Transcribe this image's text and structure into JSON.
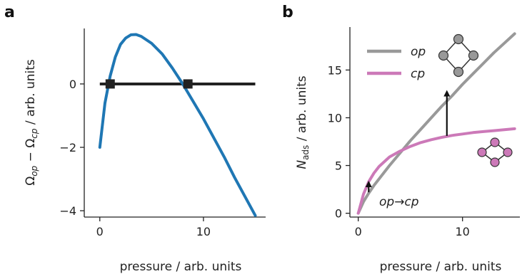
{
  "chart_data": [
    {
      "panel_label": "a",
      "type": "line",
      "xlabel": "pressure / arb. units",
      "ylabel": "Ω_op − Ω_cp / arb. units",
      "ylabel_parts": {
        "base1": "Ω",
        "sub1": "op",
        "minus": " − ",
        "base2": "Ω",
        "sub2": "cp",
        "rest": " / arb. units"
      },
      "xlim": [
        -1.5,
        16
      ],
      "ylim": [
        -4.2,
        1.75
      ],
      "xticks": [
        0,
        10
      ],
      "yticks": [
        0,
        -2,
        -4
      ],
      "ytick_labels": [
        "0",
        "−2",
        "−4"
      ],
      "series": [
        {
          "color": "#1f77b4",
          "x": [
            0,
            0.5,
            1,
            1.5,
            2,
            2.5,
            3,
            3.5,
            4,
            5,
            6,
            7,
            8,
            9,
            10,
            11,
            12,
            13,
            14,
            15
          ],
          "y": [
            -2.0,
            -0.6,
            0.25,
            0.85,
            1.25,
            1.45,
            1.55,
            1.56,
            1.5,
            1.28,
            0.95,
            0.5,
            0.0,
            -0.55,
            -1.1,
            -1.7,
            -2.3,
            -2.95,
            -3.55,
            -4.15
          ]
        }
      ],
      "hline": {
        "y": 0,
        "x": [
          0,
          15
        ],
        "color": "#222222"
      },
      "markers": {
        "x": [
          1,
          8.5
        ],
        "y": [
          0,
          0
        ],
        "color": "#222222",
        "shape": "square"
      }
    },
    {
      "panel_label": "b",
      "type": "line",
      "xlabel": "pressure / arb. units",
      "ylabel_parts": {
        "base": "N",
        "sub": "ads",
        "rest": " / arb. units"
      },
      "xlim": [
        -0.8,
        15.5
      ],
      "ylim": [
        -0.4,
        19.5
      ],
      "xticks": [
        0,
        10
      ],
      "yticks": [
        0,
        5,
        10,
        15
      ],
      "legend": {
        "position": "top-left",
        "entries": [
          "op",
          "cp"
        ]
      },
      "series": [
        {
          "name": "op",
          "color": "#999999",
          "x": [
            0,
            0.5,
            1,
            1.5,
            2,
            3,
            4,
            5,
            6,
            7,
            8,
            9,
            10,
            11,
            12,
            13,
            14,
            15
          ],
          "y": [
            0,
            1.2,
            2.1,
            2.9,
            3.6,
            5.0,
            6.3,
            7.6,
            8.8,
            10.0,
            11.2,
            12.3,
            13.5,
            14.6,
            15.7,
            16.8,
            17.8,
            18.8
          ]
        },
        {
          "name": "cp",
          "color": "#cc79b8",
          "x": [
            0,
            0.5,
            1,
            1.5,
            2,
            3,
            4,
            5,
            6,
            7,
            8,
            9,
            10,
            11,
            12,
            13,
            14,
            15
          ],
          "y": [
            0,
            2.0,
            3.3,
            4.2,
            4.9,
            5.9,
            6.5,
            7.0,
            7.4,
            7.7,
            7.95,
            8.15,
            8.3,
            8.45,
            8.55,
            8.65,
            8.75,
            8.85
          ]
        }
      ],
      "arrows": [
        {
          "x": 1,
          "y_from": 2.2,
          "y_to": 3.4
        },
        {
          "x": 8.5,
          "y_from": 8.1,
          "y_to": 12.9
        }
      ],
      "annotation": "op→cp",
      "icons": [
        {
          "name": "op-framework-icon",
          "color": "#999999",
          "shape": "square"
        },
        {
          "name": "cp-framework-icon",
          "color": "#cc79b8",
          "shape": "rhombus"
        }
      ]
    }
  ]
}
